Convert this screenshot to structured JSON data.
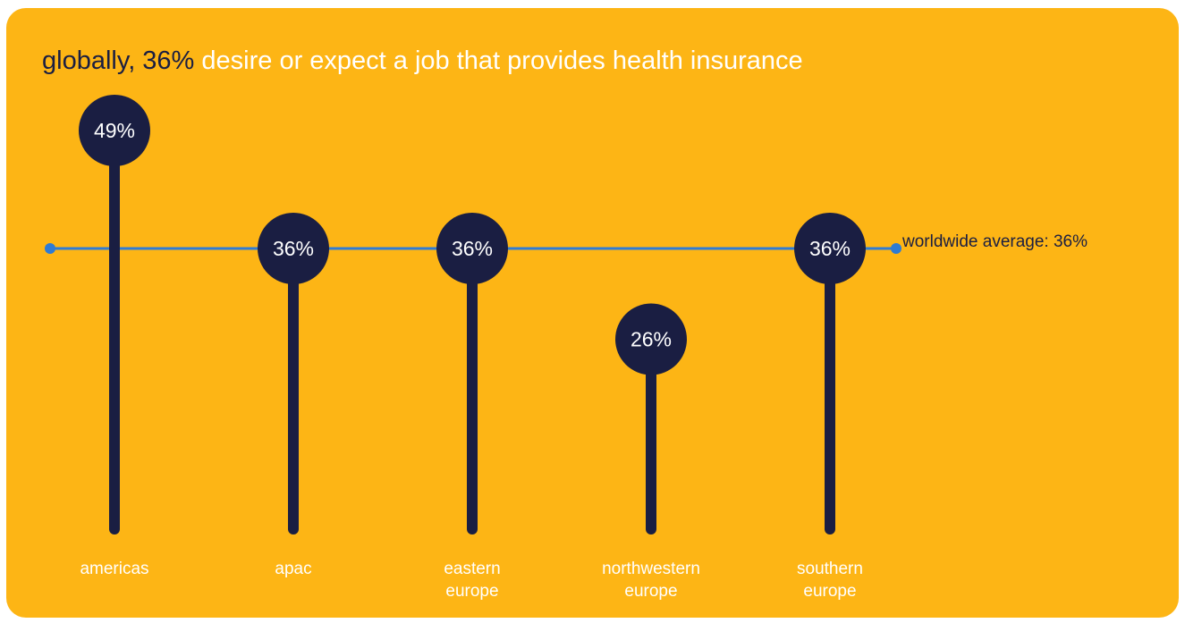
{
  "title": {
    "highlight": "globally, 36%",
    "rest": " desire or expect a job that provides health insurance"
  },
  "average": {
    "label": "worldwide average: 36%",
    "value": 36
  },
  "colors": {
    "background": "#FDB515",
    "stem": "#1A1E42",
    "average_line": "#2E7BD4",
    "label_text": "#FFFFFF",
    "highlight_text": "#1A1E42"
  },
  "chart_data": {
    "type": "lollipop",
    "title": "globally, 36% desire or expect a job that provides health insurance",
    "categories": [
      [
        "americas"
      ],
      [
        "apac"
      ],
      [
        "eastern",
        "europe"
      ],
      [
        "northwestern",
        "europe"
      ],
      [
        "southern",
        "europe"
      ]
    ],
    "values": [
      49,
      36,
      36,
      26,
      36
    ],
    "value_labels": [
      "49%",
      "36%",
      "36%",
      "26%",
      "36%"
    ],
    "reference_line": {
      "label": "worldwide average: 36%",
      "value": 36
    },
    "units": "%"
  }
}
